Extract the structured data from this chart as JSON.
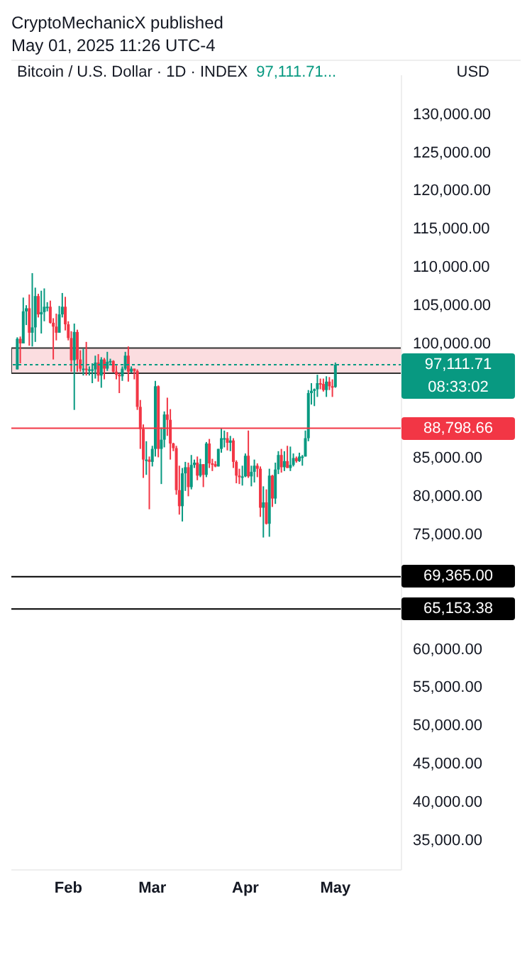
{
  "chart_data": {
    "type": "candlestick",
    "title": "Bitcoin / U.S. Dollar · 1D · INDEX",
    "subtitle": "97,111.71...",
    "ylabel": "USD",
    "annotations": [
      "CryptoMechanicX published",
      "May 01, 2025 11:26 UTC-4",
      "08:33:02"
    ],
    "x": [
      "2025-01-15",
      "2025-01-16",
      "2025-01-17",
      "2025-01-18",
      "2025-01-19",
      "2025-01-20",
      "2025-01-21",
      "2025-01-22",
      "2025-01-23",
      "2025-01-24",
      "2025-01-25",
      "2025-01-26",
      "2025-01-27",
      "2025-01-28",
      "2025-01-29",
      "2025-01-30",
      "2025-01-31",
      "2025-02-01",
      "2025-02-02",
      "2025-02-03",
      "2025-02-04",
      "2025-02-05",
      "2025-02-06",
      "2025-02-07",
      "2025-02-08",
      "2025-02-09",
      "2025-02-10",
      "2025-02-11",
      "2025-02-12",
      "2025-02-13",
      "2025-02-14",
      "2025-02-15",
      "2025-02-16",
      "2025-02-17",
      "2025-02-18",
      "2025-02-19",
      "2025-02-20",
      "2025-02-21",
      "2025-02-22",
      "2025-02-23",
      "2025-02-24",
      "2025-02-25",
      "2025-02-26",
      "2025-02-27",
      "2025-02-28",
      "2025-03-01",
      "2025-03-02",
      "2025-03-03",
      "2025-03-04",
      "2025-03-05",
      "2025-03-06",
      "2025-03-07",
      "2025-03-08",
      "2025-03-09",
      "2025-03-10",
      "2025-03-11",
      "2025-03-12",
      "2025-03-13",
      "2025-03-14",
      "2025-03-15",
      "2025-03-16",
      "2025-03-17",
      "2025-03-18",
      "2025-03-19",
      "2025-03-20",
      "2025-03-21",
      "2025-03-22",
      "2025-03-23",
      "2025-03-24",
      "2025-03-25",
      "2025-03-26",
      "2025-03-27",
      "2025-03-28",
      "2025-03-29",
      "2025-03-30",
      "2025-03-31",
      "2025-04-01",
      "2025-04-02",
      "2025-04-03",
      "2025-04-04",
      "2025-04-05",
      "2025-04-06",
      "2025-04-07",
      "2025-04-08",
      "2025-04-09",
      "2025-04-10",
      "2025-04-11",
      "2025-04-12",
      "2025-04-13",
      "2025-04-14",
      "2025-04-15",
      "2025-04-16",
      "2025-04-17",
      "2025-04-18",
      "2025-04-19",
      "2025-04-20",
      "2025-04-21",
      "2025-04-22",
      "2025-04-23",
      "2025-04-24",
      "2025-04-25",
      "2025-04-26",
      "2025-04-27",
      "2025-04-28",
      "2025-04-29",
      "2025-04-30",
      "2025-05-01"
    ],
    "ohlc": [
      [
        96500,
        100700,
        96500,
        100500
      ],
      [
        100500,
        100800,
        97300,
        99900
      ],
      [
        99900,
        105900,
        99900,
        104100
      ],
      [
        104100,
        104900,
        102300,
        104500
      ],
      [
        104500,
        106300,
        99600,
        101300
      ],
      [
        101300,
        109100,
        99500,
        102000
      ],
      [
        102000,
        107200,
        100100,
        106100
      ],
      [
        106100,
        106400,
        103300,
        103700
      ],
      [
        103700,
        106800,
        101200,
        104000
      ],
      [
        104000,
        107100,
        102800,
        104700
      ],
      [
        104700,
        105300,
        104100,
        104700
      ],
      [
        104700,
        105500,
        102500,
        102600
      ],
      [
        102600,
        103200,
        97800,
        102100
      ],
      [
        102100,
        103800,
        100300,
        101300
      ],
      [
        101300,
        104800,
        101300,
        103700
      ],
      [
        103700,
        106500,
        103300,
        104700
      ],
      [
        104700,
        106000,
        101600,
        102400
      ],
      [
        102400,
        102800,
        100300,
        100600
      ],
      [
        100600,
        101500,
        96200,
        97700
      ],
      [
        97700,
        102500,
        91200,
        101400
      ],
      [
        101400,
        101700,
        96200,
        97800
      ],
      [
        97800,
        99000,
        96200,
        96600
      ],
      [
        96600,
        99200,
        95700,
        96600
      ],
      [
        96600,
        100100,
        95700,
        96500
      ],
      [
        96500,
        96900,
        95700,
        96500
      ],
      [
        96500,
        97300,
        94700,
        96500
      ],
      [
        96500,
        98300,
        95300,
        97400
      ],
      [
        97400,
        98500,
        94900,
        95700
      ],
      [
        95700,
        98100,
        94100,
        97800
      ],
      [
        97800,
        98000,
        95200,
        96600
      ],
      [
        96600,
        98800,
        96300,
        97500
      ],
      [
        97500,
        97900,
        97200,
        97600
      ],
      [
        97600,
        97700,
        96100,
        96200
      ],
      [
        96200,
        97000,
        95200,
        95800
      ],
      [
        95800,
        96000,
        93400,
        95600
      ],
      [
        95600,
        96900,
        95000,
        96600
      ],
      [
        96600,
        98800,
        96400,
        98300
      ],
      [
        98300,
        99500,
        94900,
        96200
      ],
      [
        96200,
        96900,
        96100,
        96600
      ],
      [
        96600,
        96600,
        95200,
        96300
      ],
      [
        96300,
        96500,
        91200,
        91600
      ],
      [
        91600,
        92500,
        86100,
        88700
      ],
      [
        88700,
        89300,
        82300,
        84700
      ],
      [
        84700,
        87100,
        82700,
        84700
      ],
      [
        84700,
        85100,
        78200,
        84400
      ],
      [
        84400,
        86500,
        83800,
        86100
      ],
      [
        86100,
        95000,
        85100,
        94300
      ],
      [
        94300,
        94400,
        85000,
        86100
      ],
      [
        86100,
        88900,
        81500,
        87300
      ],
      [
        87300,
        91000,
        86300,
        90600
      ],
      [
        90600,
        92800,
        87800,
        89900
      ],
      [
        89900,
        91300,
        84700,
        86800
      ],
      [
        86800,
        86900,
        85800,
        86200
      ],
      [
        86200,
        86500,
        80100,
        80700
      ],
      [
        80700,
        83900,
        77500,
        78600
      ],
      [
        78600,
        83600,
        76600,
        82900
      ],
      [
        82900,
        84400,
        80600,
        83700
      ],
      [
        83700,
        84300,
        79900,
        81100
      ],
      [
        81100,
        85300,
        80800,
        84000
      ],
      [
        84000,
        84700,
        83600,
        84300
      ],
      [
        84300,
        85100,
        82000,
        82600
      ],
      [
        82600,
        84800,
        82400,
        84100
      ],
      [
        84100,
        84100,
        81100,
        82700
      ],
      [
        82700,
        87000,
        82400,
        86800
      ],
      [
        86800,
        87400,
        83600,
        84200
      ],
      [
        84200,
        84800,
        83200,
        84100
      ],
      [
        84100,
        84500,
        83700,
        83800
      ],
      [
        83800,
        86100,
        83800,
        86100
      ],
      [
        86100,
        88800,
        85600,
        87500
      ],
      [
        87500,
        88500,
        86300,
        87500
      ],
      [
        87500,
        88300,
        85900,
        86900
      ],
      [
        86900,
        87800,
        85800,
        87200
      ],
      [
        87200,
        87500,
        83600,
        84400
      ],
      [
        84400,
        84600,
        81600,
        82600
      ],
      [
        82600,
        83500,
        81500,
        82400
      ],
      [
        82400,
        83900,
        81300,
        82500
      ],
      [
        82500,
        85500,
        82400,
        85200
      ],
      [
        85200,
        88500,
        82300,
        82500
      ],
      [
        82500,
        83900,
        81200,
        83100
      ],
      [
        83100,
        84700,
        81700,
        83900
      ],
      [
        83900,
        84200,
        82400,
        83500
      ],
      [
        83500,
        83800,
        77200,
        78400
      ],
      [
        78400,
        81200,
        74500,
        79100
      ],
      [
        79100,
        80800,
        76200,
        76300
      ],
      [
        76300,
        83500,
        74600,
        82600
      ],
      [
        82600,
        82700,
        78500,
        79600
      ],
      [
        79600,
        84300,
        78900,
        83400
      ],
      [
        83400,
        85800,
        82800,
        85300
      ],
      [
        85300,
        86100,
        83000,
        83700
      ],
      [
        83700,
        85800,
        83200,
        84500
      ],
      [
        84500,
        86500,
        83600,
        83600
      ],
      [
        83600,
        86400,
        83200,
        84000
      ],
      [
        84000,
        85500,
        83800,
        84900
      ],
      [
        84900,
        85100,
        84300,
        84500
      ],
      [
        84500,
        85600,
        84400,
        85100
      ],
      [
        85100,
        85300,
        83900,
        85100
      ],
      [
        85100,
        88500,
        85100,
        87500
      ],
      [
        87500,
        93800,
        87100,
        93400
      ],
      [
        93400,
        94700,
        91900,
        93700
      ],
      [
        93700,
        94000,
        91700,
        93900
      ],
      [
        93900,
        95800,
        92900,
        94700
      ],
      [
        94700,
        95300,
        93900,
        94600
      ],
      [
        94600,
        95300,
        93600,
        93800
      ],
      [
        93800,
        95600,
        92900,
        94900
      ],
      [
        94900,
        95500,
        93800,
        94300
      ],
      [
        94300,
        95200,
        92900,
        94200
      ],
      [
        94200,
        97400,
        94100,
        97111.71
      ]
    ],
    "xlim": [
      "2025-01-13",
      "2025-05-23"
    ],
    "xticks": [
      {
        "value": "2025-02-01",
        "label": "Feb"
      },
      {
        "value": "2025-03-01",
        "label": "Mar"
      },
      {
        "value": "2025-04-01",
        "label": "Apr"
      },
      {
        "value": "2025-05-01",
        "label": "May"
      }
    ],
    "ylim": [
      31000,
      135000
    ],
    "yticks": [
      {
        "value": 35000,
        "label": "35,000.00"
      },
      {
        "value": 40000,
        "label": "40,000.00"
      },
      {
        "value": 45000,
        "label": "45,000.00"
      },
      {
        "value": 50000,
        "label": "50,000.00"
      },
      {
        "value": 55000,
        "label": "55,000.00"
      },
      {
        "value": 60000,
        "label": "60,000.00"
      },
      {
        "value": 75000,
        "label": "75,000.00"
      },
      {
        "value": 80000,
        "label": "80,000.00"
      },
      {
        "value": 85000,
        "label": "85,000.00"
      },
      {
        "value": 100000,
        "label": "100,000.00"
      },
      {
        "value": 105000,
        "label": "105,000.00"
      },
      {
        "value": 110000,
        "label": "110,000.00"
      },
      {
        "value": 115000,
        "label": "115,000.00"
      },
      {
        "value": 120000,
        "label": "120,000.00"
      },
      {
        "value": 125000,
        "label": "125,000.00"
      },
      {
        "value": 130000,
        "label": "130,000.00"
      }
    ],
    "ref_lines": [
      {
        "axis": "y",
        "value": 97111.71,
        "label": "97,111.71",
        "color": "#089981",
        "line_style": "dotted"
      },
      {
        "axis": "y",
        "value": 88798.66,
        "label": "88,798.66",
        "color": "#f23645",
        "line_style": "solid"
      },
      {
        "axis": "y",
        "value": 69365,
        "label": "69,365.00",
        "color": "#000000",
        "line_style": "solid"
      },
      {
        "axis": "y",
        "value": 65153.38,
        "label": "65,153.38",
        "color": "#000000",
        "line_style": "solid"
      }
    ],
    "bands": [
      {
        "axis": "y",
        "from": 96000,
        "to": 99300,
        "color": "#fbdde0"
      }
    ],
    "grid": false
  }
}
